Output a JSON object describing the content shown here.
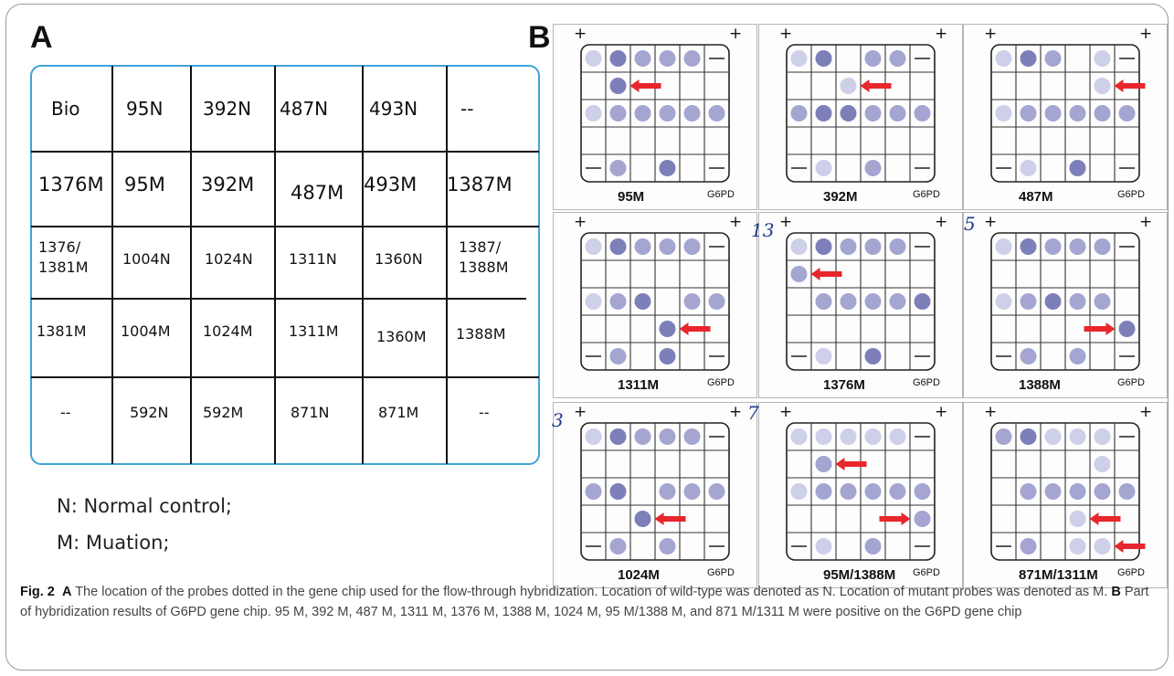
{
  "panel_a": {
    "letter": "A",
    "rows": [
      [
        "Bio",
        "95N",
        "392N",
        "487N",
        "493N",
        "--"
      ],
      [
        "1376M",
        "95M",
        "392M",
        "487M",
        "493M",
        "1387M"
      ],
      [
        "1376/\n1381M",
        "1004N",
        "1024N",
        "1311N",
        "1360N",
        "1387/\n1388M"
      ],
      [
        "1381M",
        "1004M",
        "1024M",
        "1311M",
        "1360M",
        "1388M"
      ],
      [
        "--",
        "592N",
        "592M",
        "871N",
        "871M",
        "--"
      ]
    ],
    "legend": [
      "N: Normal control;",
      "M: Muation;"
    ]
  },
  "panel_b": {
    "letter": "B",
    "gene": "G6PD",
    "plus": "+",
    "blots": [
      {
        "label": "95M"
      },
      {
        "label": "392M"
      },
      {
        "label": "487M"
      },
      {
        "label": "1311M"
      },
      {
        "label": "1376M"
      },
      {
        "label": "1388M"
      },
      {
        "label": "1024M"
      },
      {
        "label": "95M/1388M"
      },
      {
        "label": "871M/1311M"
      }
    ],
    "handwritten": [
      "13",
      "5",
      "3",
      "7"
    ]
  },
  "caption": {
    "fig": "Fig. 2",
    "a_letter": "A",
    "a_text": "The location of the probes dotted in the gene chip used for the flow-through hybridization. Location of wild-type was denoted as N. Location of mutant probes was denoted as M.",
    "b_letter": "B",
    "b_text": "Part of hybridization results of G6PD gene chip. 95 M, 392 M, 487 M, 1311 M, 1376 M, 1388 M, 1024 M, 95 M/1388 M, and 871 M/1311 M were positive on the G6PD gene chip"
  },
  "colors": {
    "frame": "#9a9a9a",
    "table_border": "#3fa3d6",
    "arrow": "#e8262b",
    "dot_dark": "#6f72b0",
    "dot_light": "#c9cae6"
  }
}
